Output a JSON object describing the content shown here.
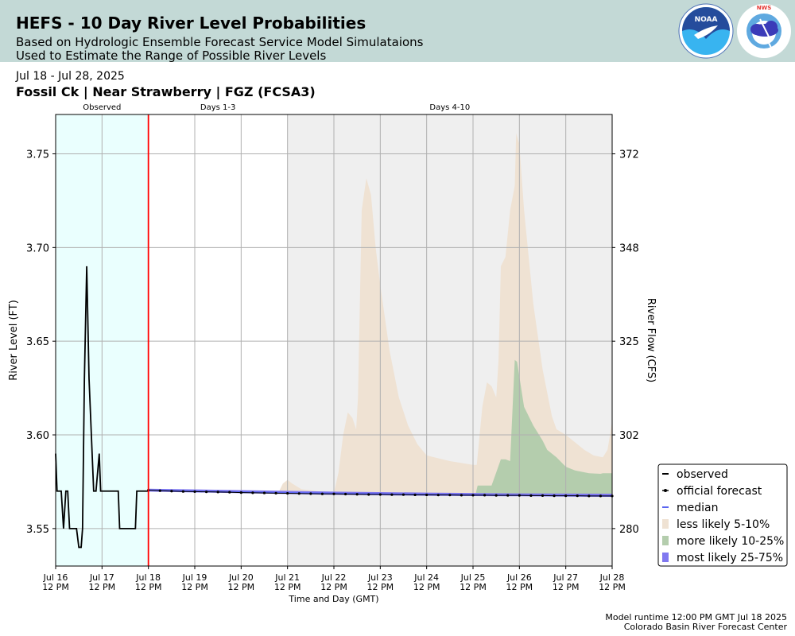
{
  "header": {
    "title": "HEFS - 10 Day River Level Probabilities",
    "subtitle_line1": "Based on Hydrologic Ensemble Forecast Service Model Simulataions",
    "subtitle_line2": "Used to Estimate the Range of Possible River Levels",
    "noaa_logo_text": "NOAA",
    "nws_logo_text": "NATIONAL WEATHER SERVICE"
  },
  "info": {
    "date_range": "Jul 18 - Jul 28, 2025",
    "location": "Fossil Ck | Near Strawberry | FGZ (FCSA3)"
  },
  "footer": {
    "runtime": "Model runtime 12:00 PM GMT Jul 18 2025",
    "center": "Colorado Basin River Forecast Center"
  },
  "colors": {
    "observed_bg": "#eafffe",
    "days4_10_bg": "#efefef",
    "observed_line": "#000000",
    "forecast_line": "#000000",
    "median": "#5a64f0",
    "less_likely": "#efe2d3",
    "more_likely": "#b4cdad",
    "most_likely": "#8078f0",
    "current_time": "#ff0000"
  },
  "chart_data": {
    "type": "area",
    "period_labels": [
      "Observed",
      "Days 1-3",
      "Days 4-10"
    ],
    "xlabel": "Time and Day (GMT)",
    "ylabel": "River Level (FT)",
    "ylabel_right": "River Flow (CFS)",
    "x_unit": "days after Jul 16 12 PM",
    "xlim": [
      0,
      12
    ],
    "ylim": [
      3.53,
      3.771
    ],
    "y_ticks": [
      "3.55",
      "3.60",
      "3.65",
      "3.70",
      "3.75"
    ],
    "y_tick_values": [
      3.55,
      3.6,
      3.65,
      3.7,
      3.75
    ],
    "y2_ticks": [
      "280",
      "302",
      "325",
      "348",
      "372"
    ],
    "x_ticks": [
      {
        "day": "Jul 16",
        "time": "12 PM"
      },
      {
        "day": "Jul 17",
        "time": "12 PM"
      },
      {
        "day": "Jul 18",
        "time": "12 PM"
      },
      {
        "day": "Jul 19",
        "time": "12 PM"
      },
      {
        "day": "Jul 20",
        "time": "12 PM"
      },
      {
        "day": "Jul 21",
        "time": "12 PM"
      },
      {
        "day": "Jul 22",
        "time": "12 PM"
      },
      {
        "day": "Jul 23",
        "time": "12 PM"
      },
      {
        "day": "Jul 24",
        "time": "12 PM"
      },
      {
        "day": "Jul 25",
        "time": "12 PM"
      },
      {
        "day": "Jul 26",
        "time": "12 PM"
      },
      {
        "day": "Jul 27",
        "time": "12 PM"
      },
      {
        "day": "Jul 28",
        "time": "12 PM"
      }
    ],
    "periods": {
      "observed": [
        0,
        2
      ],
      "days1_3": [
        2,
        5
      ],
      "days4_10": [
        5,
        12
      ]
    },
    "current_time_x": 2,
    "grid": true,
    "legend_position": "right",
    "legend": {
      "observed": "observed",
      "official_forecast": "official forecast",
      "median": "median",
      "less_likely": "less likely 5-10%",
      "more_likely": "more likely 10-25%",
      "most_likely": "most likely 25-75%"
    },
    "observed": [
      [
        0,
        3.59
      ],
      [
        0.03,
        3.57
      ],
      [
        0.12,
        3.57
      ],
      [
        0.17,
        3.55
      ],
      [
        0.22,
        3.57
      ],
      [
        0.26,
        3.57
      ],
      [
        0.3,
        3.55
      ],
      [
        0.45,
        3.55
      ],
      [
        0.5,
        3.54
      ],
      [
        0.55,
        3.54
      ],
      [
        0.58,
        3.55
      ],
      [
        0.62,
        3.63
      ],
      [
        0.67,
        3.69
      ],
      [
        0.72,
        3.63
      ],
      [
        0.82,
        3.57
      ],
      [
        0.87,
        3.57
      ],
      [
        0.94,
        3.59
      ],
      [
        0.97,
        3.57
      ],
      [
        1.35,
        3.57
      ],
      [
        1.38,
        3.55
      ],
      [
        1.72,
        3.55
      ],
      [
        1.75,
        3.57
      ],
      [
        2.0,
        3.57
      ]
    ],
    "official_forecast": [
      [
        2,
        3.5705
      ],
      [
        2.25,
        3.5702
      ],
      [
        2.5,
        3.57
      ],
      [
        2.75,
        3.5698
      ],
      [
        3,
        3.5697
      ],
      [
        3.25,
        3.5696
      ],
      [
        3.5,
        3.5695
      ],
      [
        3.75,
        3.5694
      ],
      [
        4,
        3.5692
      ],
      [
        4.25,
        3.5691
      ],
      [
        4.5,
        3.569
      ],
      [
        4.75,
        3.5689
      ],
      [
        5,
        3.5688
      ],
      [
        5.25,
        3.5687
      ],
      [
        5.5,
        3.5686
      ],
      [
        5.75,
        3.5685
      ],
      [
        6,
        3.5685
      ],
      [
        6.25,
        3.5684
      ],
      [
        6.5,
        3.5683
      ],
      [
        6.75,
        3.5682
      ],
      [
        7,
        3.5682
      ],
      [
        7.25,
        3.5681
      ],
      [
        7.5,
        3.5681
      ],
      [
        7.75,
        3.568
      ],
      [
        8,
        3.568
      ],
      [
        8.25,
        3.5679
      ],
      [
        8.5,
        3.5679
      ],
      [
        8.75,
        3.5678
      ],
      [
        9,
        3.5678
      ],
      [
        9.25,
        3.5678
      ],
      [
        9.5,
        3.5677
      ],
      [
        9.75,
        3.5677
      ],
      [
        10,
        3.5677
      ],
      [
        10.25,
        3.5676
      ],
      [
        10.5,
        3.5676
      ],
      [
        10.75,
        3.5675
      ],
      [
        11,
        3.5675
      ],
      [
        11.25,
        3.5675
      ],
      [
        11.5,
        3.5674
      ],
      [
        11.75,
        3.5674
      ],
      [
        12,
        3.5674
      ]
    ],
    "median": [
      [
        2,
        3.5705
      ],
      [
        4,
        3.5695
      ],
      [
        6,
        3.5688
      ],
      [
        8,
        3.5682
      ],
      [
        10,
        3.5677
      ],
      [
        12,
        3.5674
      ]
    ],
    "less_likely_upper": [
      [
        2,
        3.5705
      ],
      [
        4.8,
        3.569
      ],
      [
        4.9,
        3.574
      ],
      [
        5.0,
        3.576
      ],
      [
        5.1,
        3.574
      ],
      [
        5.3,
        3.571
      ],
      [
        6.0,
        3.569
      ],
      [
        6.1,
        3.58
      ],
      [
        6.2,
        3.6
      ],
      [
        6.3,
        3.612
      ],
      [
        6.4,
        3.609
      ],
      [
        6.48,
        3.603
      ],
      [
        6.52,
        3.62
      ],
      [
        6.6,
        3.72
      ],
      [
        6.7,
        3.737
      ],
      [
        6.8,
        3.728
      ],
      [
        6.9,
        3.7
      ],
      [
        7.0,
        3.68
      ],
      [
        7.2,
        3.645
      ],
      [
        7.4,
        3.62
      ],
      [
        7.6,
        3.605
      ],
      [
        7.8,
        3.595
      ],
      [
        8.0,
        3.589
      ],
      [
        8.5,
        3.586
      ],
      [
        9.0,
        3.584
      ],
      [
        9.08,
        3.584
      ],
      [
        9.2,
        3.615
      ],
      [
        9.3,
        3.628
      ],
      [
        9.4,
        3.626
      ],
      [
        9.5,
        3.62
      ],
      [
        9.55,
        3.64
      ],
      [
        9.6,
        3.69
      ],
      [
        9.7,
        3.695
      ],
      [
        9.8,
        3.72
      ],
      [
        9.9,
        3.733
      ],
      [
        9.93,
        3.761
      ],
      [
        10.0,
        3.755
      ],
      [
        10.1,
        3.72
      ],
      [
        10.3,
        3.67
      ],
      [
        10.5,
        3.635
      ],
      [
        10.7,
        3.61
      ],
      [
        10.8,
        3.603
      ],
      [
        11.0,
        3.6
      ],
      [
        11.2,
        3.596
      ],
      [
        11.4,
        3.592
      ],
      [
        11.6,
        3.589
      ],
      [
        11.8,
        3.588
      ],
      [
        11.9,
        3.592
      ],
      [
        12.0,
        3.607
      ]
    ],
    "more_likely_upper": [
      [
        8.8,
        3.5678
      ],
      [
        9.05,
        3.5678
      ],
      [
        9.1,
        3.573
      ],
      [
        9.4,
        3.573
      ],
      [
        9.5,
        3.58
      ],
      [
        9.6,
        3.587
      ],
      [
        9.7,
        3.587
      ],
      [
        9.8,
        3.586
      ],
      [
        9.9,
        3.64
      ],
      [
        9.95,
        3.639
      ],
      [
        10.1,
        3.615
      ],
      [
        10.3,
        3.605
      ],
      [
        10.5,
        3.597
      ],
      [
        10.6,
        3.592
      ],
      [
        10.8,
        3.588
      ],
      [
        11.0,
        3.583
      ],
      [
        11.2,
        3.581
      ],
      [
        11.5,
        3.5795
      ],
      [
        11.75,
        3.5792
      ],
      [
        11.8,
        3.5795
      ],
      [
        12.0,
        3.5795
      ]
    ],
    "most_likely_lower": [
      [
        2,
        3.5697
      ],
      [
        6,
        3.568
      ],
      [
        8,
        3.5675
      ],
      [
        10,
        3.5672
      ],
      [
        12,
        3.5669
      ]
    ],
    "most_likely_upper": [
      [
        2,
        3.5713
      ],
      [
        6,
        3.5697
      ],
      [
        8,
        3.5692
      ],
      [
        10,
        3.5688
      ],
      [
        12,
        3.5686
      ]
    ]
  }
}
